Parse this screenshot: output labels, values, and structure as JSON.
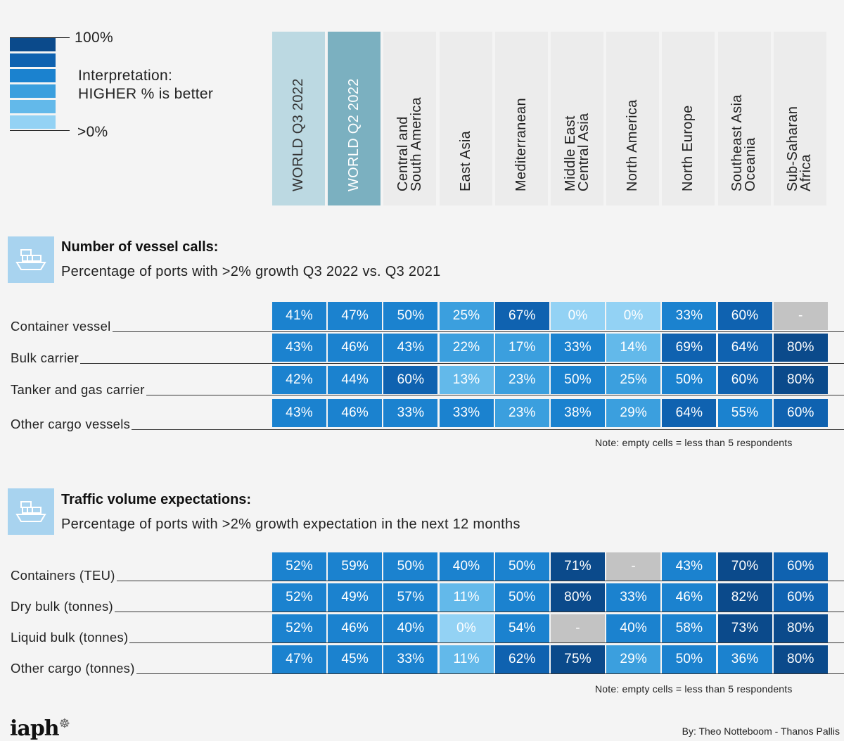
{
  "legend": {
    "max_label": "100%",
    "min_label": ">0%",
    "interpretation_line1": "Interpretation:",
    "interpretation_line2": "HIGHER % is better",
    "swatches": [
      "#0b4a8b",
      "#0f62b0",
      "#1b82cf",
      "#3b9fde",
      "#63b9ea",
      "#93d2f4"
    ]
  },
  "columns": [
    {
      "label": "WORLD Q3 2022",
      "bg": "#bcd9e2"
    },
    {
      "label": "WORLD Q2 2022",
      "bg": "#7bb0c0"
    },
    {
      "label": "Central and\nSouth America",
      "bg": "#ececec"
    },
    {
      "label": "East Asia",
      "bg": "#ececec"
    },
    {
      "label": "Mediterranean",
      "bg": "#ececec"
    },
    {
      "label": "Middle East\nCentral Asia",
      "bg": "#ececec"
    },
    {
      "label": "North America",
      "bg": "#ececec"
    },
    {
      "label": "North Europe",
      "bg": "#ececec"
    },
    {
      "label": "Southeast Asia\nOceania",
      "bg": "#ececec"
    },
    {
      "label": "Sub-Saharan\nAfrica",
      "bg": "#ececec"
    }
  ],
  "sections": [
    {
      "title": "Number of vessel calls:",
      "subtitle": "Percentage of ports with >2% growth Q3 2022 vs. Q3 2021",
      "note": "Note: empty cells = less than 5 respondents"
    },
    {
      "title": "Traffic volume expectations:",
      "subtitle": "Percentage of ports with >2% growth expectation in the next 12 months",
      "note": "Note: empty cells = less than 5 respondents"
    }
  ],
  "chart_data": [
    {
      "type": "heatmap",
      "title": "Number of vessel calls:",
      "subtitle": "Percentage of ports with >2% growth Q3 2022 vs. Q3 2021",
      "columns": [
        "WORLD Q3 2022",
        "WORLD Q2 2022",
        "Central and South America",
        "East Asia",
        "Mediterranean",
        "Middle East Central Asia",
        "North America",
        "North Europe",
        "Southeast Asia Oceania",
        "Sub-Saharan Africa"
      ],
      "rows": [
        {
          "label": "Container vessel",
          "values": [
            41,
            47,
            50,
            25,
            67,
            0,
            0,
            33,
            60,
            null
          ]
        },
        {
          "label": "Bulk carrier",
          "values": [
            43,
            46,
            43,
            22,
            17,
            33,
            14,
            69,
            64,
            80
          ]
        },
        {
          "label": "Tanker and gas carrier",
          "values": [
            42,
            44,
            60,
            13,
            23,
            50,
            25,
            50,
            60,
            80
          ]
        },
        {
          "label": "Other cargo vessels",
          "values": [
            43,
            46,
            33,
            33,
            23,
            38,
            29,
            64,
            55,
            60
          ]
        }
      ],
      "empty_label": "-",
      "unit": "%"
    },
    {
      "type": "heatmap",
      "title": "Traffic volume expectations:",
      "subtitle": "Percentage of ports with >2% growth expectation in the next 12 months",
      "columns": [
        "WORLD Q3 2022",
        "WORLD Q2 2022",
        "Central and South America",
        "East Asia",
        "Mediterranean",
        "Middle East Central Asia",
        "North America",
        "North Europe",
        "Southeast Asia Oceania",
        "Sub-Saharan Africa"
      ],
      "rows": [
        {
          "label": "Containers (TEU)",
          "values": [
            52,
            59,
            50,
            40,
            50,
            71,
            null,
            43,
            70,
            60
          ]
        },
        {
          "label": "Dry bulk (tonnes)",
          "values": [
            52,
            49,
            57,
            11,
            50,
            80,
            33,
            46,
            82,
            60
          ]
        },
        {
          "label": "Liquid bulk (tonnes)",
          "values": [
            52,
            46,
            40,
            0,
            54,
            null,
            40,
            58,
            73,
            80
          ]
        },
        {
          "label": "Other cargo (tonnes)",
          "values": [
            47,
            45,
            33,
            11,
            62,
            75,
            29,
            50,
            36,
            80
          ]
        }
      ],
      "empty_label": "-",
      "unit": "%"
    }
  ],
  "colors": {
    "empty_cell": "#c3c3c3",
    "scale": [
      "#93d2f4",
      "#63b9ea",
      "#3b9fde",
      "#1b82cf",
      "#0f62b0",
      "#0b4a8b"
    ]
  },
  "footer": {
    "logo": "iaph",
    "credit": "By: Theo Notteboom - Thanos Pallis"
  }
}
